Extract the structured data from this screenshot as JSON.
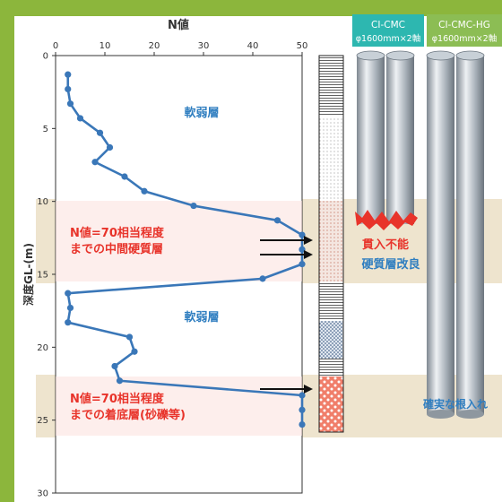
{
  "colors": {
    "frame": "#8cb63c",
    "band": "#e6dcc4",
    "band_red": "#f6dede",
    "plot_line": "#3a77b8",
    "label_blue": "#2f7ec0",
    "label_red": "#e8332a",
    "pillar": "#a9b2ba",
    "pillar_dark": "#6d7781",
    "header_teal": "#2db7b0",
    "header_green": "#8cbd54"
  },
  "header": {
    "col1_title": "CI-CMC",
    "col1_sub": "φ1600mm×2軸",
    "col2_title": "CI-CMC-HG",
    "col2_sub": "φ1600mm×2軸"
  },
  "labels": {
    "soft_upper": "軟弱層",
    "soft_lower": "軟弱層",
    "mid_hard_1": "N値=70相当程度",
    "mid_hard_2": "までの中間硬質層",
    "base_1": "N値=70相当程度",
    "base_2": "までの着底層(砂礫等)",
    "no_penetration": "貫入不能",
    "hard_improve": "硬質層改良",
    "firm_embed": "確実な根入れ"
  },
  "chart_data": {
    "type": "line",
    "title": "",
    "xlabel": "N値",
    "ylabel": "深度GL-(m)",
    "xlim": [
      0,
      50
    ],
    "ylim": [
      0,
      30
    ],
    "y_inverted": true,
    "x_ticks": [
      "0",
      "10",
      "20",
      "30",
      "40",
      "50"
    ],
    "y_ticks": [
      "0",
      "5",
      "10",
      "15",
      "20",
      "25",
      "30"
    ],
    "grid": false,
    "series": [
      {
        "x": [
          2.5,
          2.5,
          3,
          5,
          9,
          11,
          8,
          14,
          18,
          28,
          45,
          50,
          50,
          50,
          42,
          2.5,
          3,
          2.5,
          15,
          16,
          12,
          13,
          50,
          50,
          50
        ],
        "y": [
          1.3,
          2.3,
          3.3,
          4.3,
          5.3,
          6.3,
          7.3,
          8.3,
          9.3,
          10.3,
          11.3,
          12.3,
          13.3,
          14.3,
          15.3,
          16.3,
          17.3,
          18.3,
          19.3,
          20.3,
          21.3,
          22.3,
          23.3,
          24.3,
          25.3
        ]
      }
    ]
  }
}
